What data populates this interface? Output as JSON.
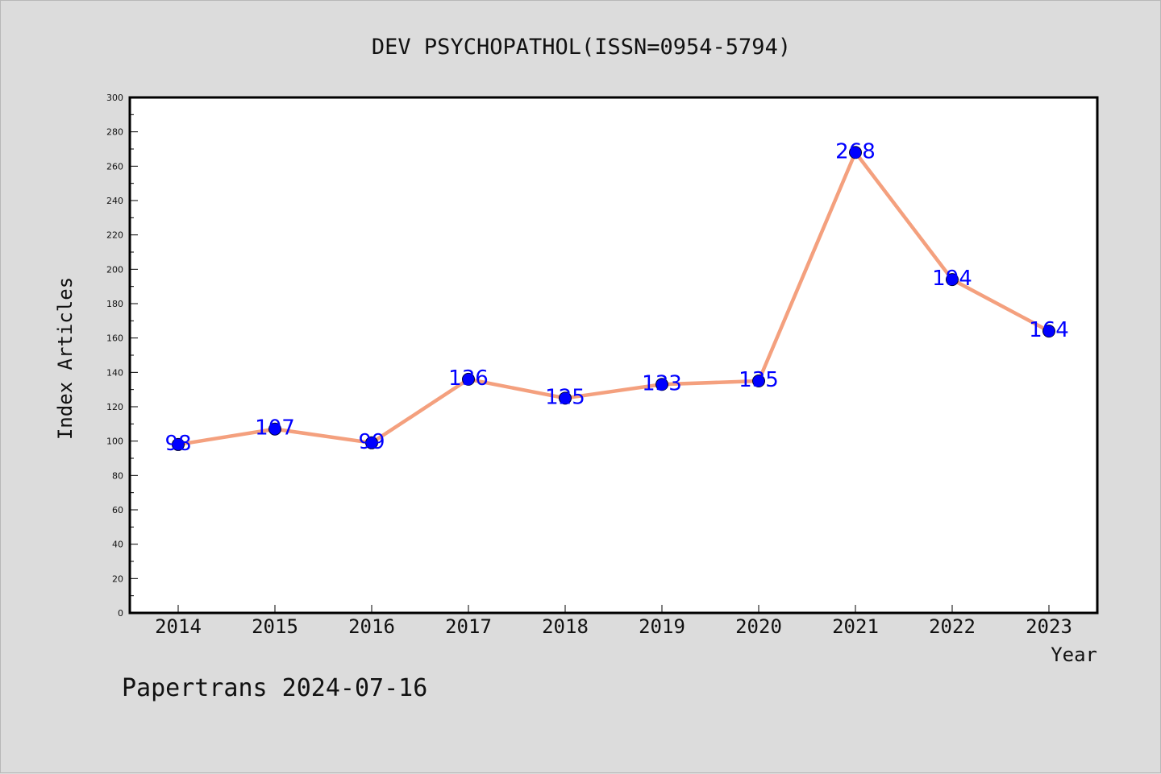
{
  "chart_data": {
    "type": "line",
    "title": "DEV PSYCHOPATHOL(ISSN=0954-5794)",
    "xlabel": "Year",
    "ylabel": "Index Articles",
    "x": [
      "2014",
      "2015",
      "2016",
      "2017",
      "2018",
      "2019",
      "2020",
      "2021",
      "2022",
      "2023"
    ],
    "values": [
      98,
      107,
      99,
      136,
      125,
      133,
      135,
      268,
      194,
      164
    ],
    "ylim": [
      0,
      300
    ],
    "yticks": [
      0,
      20,
      40,
      60,
      80,
      100,
      120,
      140,
      160,
      180,
      200,
      220,
      240,
      260,
      280,
      300
    ],
    "grid": false,
    "line_color": "#f4a07e",
    "marker_color": "#0000ff",
    "label_color": "#0000ff"
  },
  "footer": "Papertrans 2024-07-16"
}
